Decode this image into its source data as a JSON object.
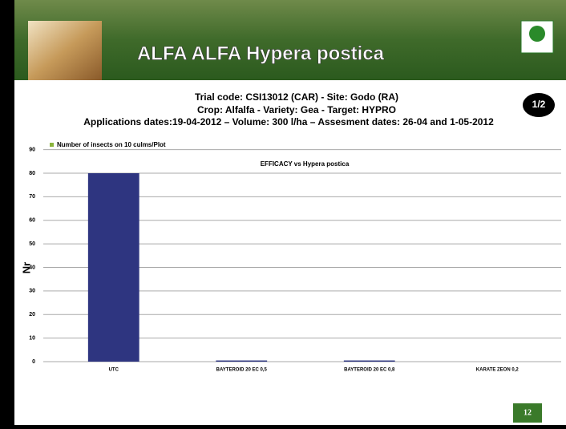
{
  "header": {
    "title": "ALFA ALFA Hypera postica"
  },
  "trial_info": [
    "Trial code: CSI13012 (CAR) - Site: Godo (RA)",
    "Crop: Alfalfa - Variety: Gea - Target: HYPRO",
    "Applications dates:19-04-2012 – Volume: 300 l/ha – Assesment dates: 26-04 and 1-05-2012"
  ],
  "badge": "1/2",
  "page_number": "12",
  "chart_data": {
    "type": "bar",
    "title": "EFFICACY vs Hypera postica",
    "legend_note": "Number of insects on 10 culms/Plot",
    "y_label": "Nr",
    "categories": [
      "UTC",
      "BAYTEROID 20 EC 0,5",
      "BAYTEROID 20 EC 0,8",
      "KARATE ZEON 0,2"
    ],
    "values": [
      80,
      0.5,
      0.5,
      0
    ],
    "color": "#2e3580",
    "ylim": [
      0,
      90
    ],
    "yticks": [
      0,
      10,
      20,
      30,
      40,
      50,
      60,
      70,
      80,
      90
    ],
    "grid": true
  }
}
